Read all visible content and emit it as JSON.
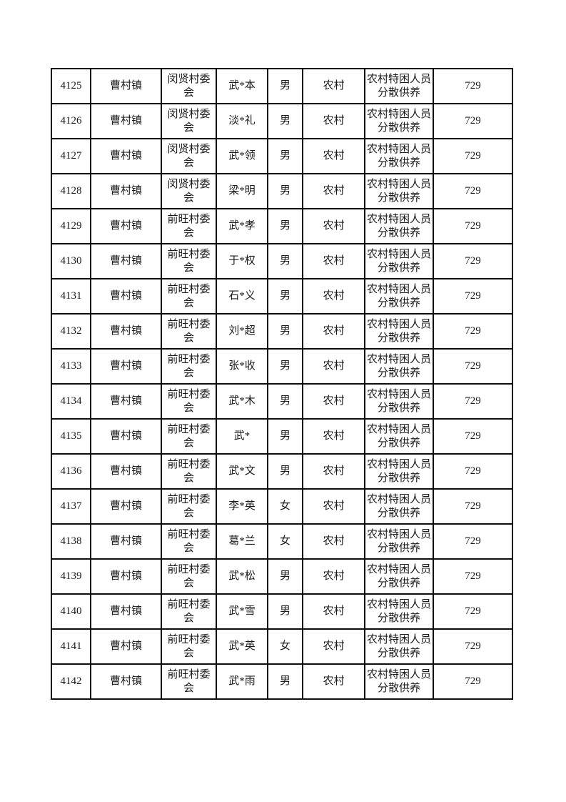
{
  "table": {
    "rows": [
      {
        "serial": "4125",
        "town": "曹村镇",
        "village_committee": "闵贤村委会",
        "name": "武*本",
        "gender": "男",
        "area_type": "农村",
        "support_category": "农村特困人员分散供养",
        "amount": "729"
      },
      {
        "serial": "4126",
        "town": "曹村镇",
        "village_committee": "闵贤村委会",
        "name": "淡*礼",
        "gender": "男",
        "area_type": "农村",
        "support_category": "农村特困人员分散供养",
        "amount": "729"
      },
      {
        "serial": "4127",
        "town": "曹村镇",
        "village_committee": "闵贤村委会",
        "name": "武*领",
        "gender": "男",
        "area_type": "农村",
        "support_category": "农村特困人员分散供养",
        "amount": "729"
      },
      {
        "serial": "4128",
        "town": "曹村镇",
        "village_committee": "闵贤村委会",
        "name": "梁*明",
        "gender": "男",
        "area_type": "农村",
        "support_category": "农村特困人员分散供养",
        "amount": "729"
      },
      {
        "serial": "4129",
        "town": "曹村镇",
        "village_committee": "前旺村委会",
        "name": "武*孝",
        "gender": "男",
        "area_type": "农村",
        "support_category": "农村特困人员分散供养",
        "amount": "729"
      },
      {
        "serial": "4130",
        "town": "曹村镇",
        "village_committee": "前旺村委会",
        "name": "于*权",
        "gender": "男",
        "area_type": "农村",
        "support_category": "农村特困人员分散供养",
        "amount": "729"
      },
      {
        "serial": "4131",
        "town": "曹村镇",
        "village_committee": "前旺村委会",
        "name": "石*义",
        "gender": "男",
        "area_type": "农村",
        "support_category": "农村特困人员分散供养",
        "amount": "729"
      },
      {
        "serial": "4132",
        "town": "曹村镇",
        "village_committee": "前旺村委会",
        "name": "刘*超",
        "gender": "男",
        "area_type": "农村",
        "support_category": "农村特困人员分散供养",
        "amount": "729"
      },
      {
        "serial": "4133",
        "town": "曹村镇",
        "village_committee": "前旺村委会",
        "name": "张*收",
        "gender": "男",
        "area_type": "农村",
        "support_category": "农村特困人员分散供养",
        "amount": "729"
      },
      {
        "serial": "4134",
        "town": "曹村镇",
        "village_committee": "前旺村委会",
        "name": "武*木",
        "gender": "男",
        "area_type": "农村",
        "support_category": "农村特困人员分散供养",
        "amount": "729"
      },
      {
        "serial": "4135",
        "town": "曹村镇",
        "village_committee": "前旺村委会",
        "name": "武*",
        "gender": "男",
        "area_type": "农村",
        "support_category": "农村特困人员分散供养",
        "amount": "729"
      },
      {
        "serial": "4136",
        "town": "曹村镇",
        "village_committee": "前旺村委会",
        "name": "武*文",
        "gender": "男",
        "area_type": "农村",
        "support_category": "农村特困人员分散供养",
        "amount": "729"
      },
      {
        "serial": "4137",
        "town": "曹村镇",
        "village_committee": "前旺村委会",
        "name": "李*英",
        "gender": "女",
        "area_type": "农村",
        "support_category": "农村特困人员分散供养",
        "amount": "729"
      },
      {
        "serial": "4138",
        "town": "曹村镇",
        "village_committee": "前旺村委会",
        "name": "葛*兰",
        "gender": "女",
        "area_type": "农村",
        "support_category": "农村特困人员分散供养",
        "amount": "729"
      },
      {
        "serial": "4139",
        "town": "曹村镇",
        "village_committee": "前旺村委会",
        "name": "武*松",
        "gender": "男",
        "area_type": "农村",
        "support_category": "农村特困人员分散供养",
        "amount": "729"
      },
      {
        "serial": "4140",
        "town": "曹村镇",
        "village_committee": "前旺村委会",
        "name": "武*雪",
        "gender": "男",
        "area_type": "农村",
        "support_category": "农村特困人员分散供养",
        "amount": "729"
      },
      {
        "serial": "4141",
        "town": "曹村镇",
        "village_committee": "前旺村委会",
        "name": "武*英",
        "gender": "女",
        "area_type": "农村",
        "support_category": "农村特困人员分散供养",
        "amount": "729"
      },
      {
        "serial": "4142",
        "town": "曹村镇",
        "village_committee": "前旺村委会",
        "name": "武*雨",
        "gender": "男",
        "area_type": "农村",
        "support_category": "农村特困人员分散供养",
        "amount": "729"
      }
    ],
    "text_color": "#1a1a1a",
    "border_color": "#0e0e0e",
    "page_background": "#ffffff"
  }
}
